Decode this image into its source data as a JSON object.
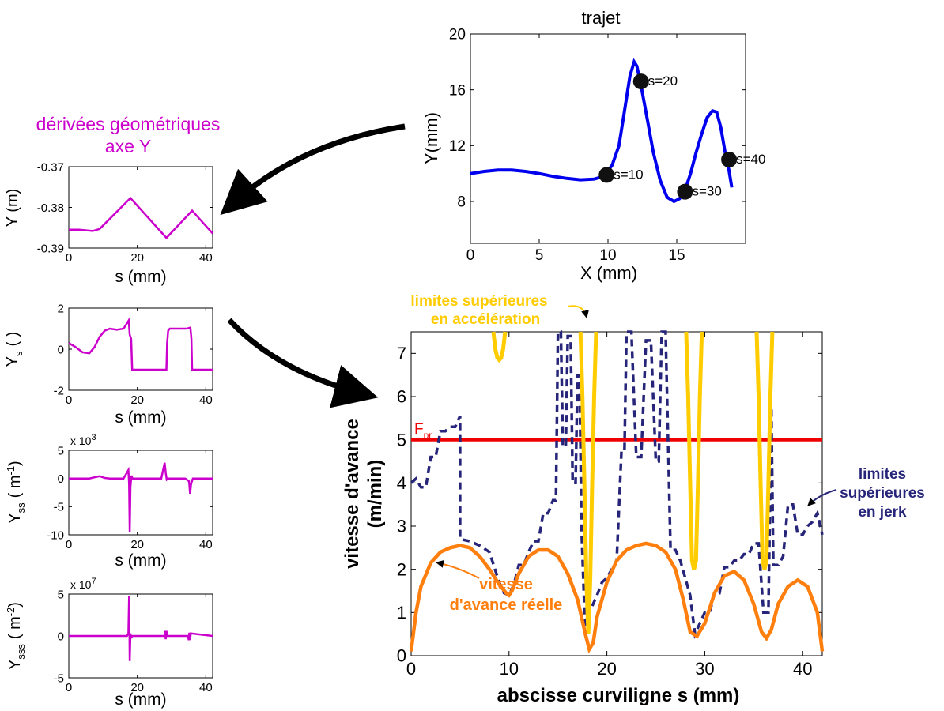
{
  "colors": {
    "path": "#0000ee",
    "derivative": "#cc00cc",
    "real_speed": "#ff7f0e",
    "jerk_limit": "#27257a",
    "accel_limit": "#ffcc00",
    "programmed": "#ee0000",
    "arrow": "#000000"
  },
  "labels": {
    "derivatives_title_1": "dérivées géométriques",
    "derivatives_title_2": "axe Y",
    "accel_annot_1": "limites supérieures",
    "accel_annot_2": "en accélération",
    "jerk_annot_1": "limites",
    "jerk_annot_2": "supérieures",
    "jerk_annot_3": "en jerk",
    "real_annot_1": "vitesse",
    "real_annot_2": "d'avance réelle",
    "fpr_main": "F",
    "fpr_sub": "pr",
    "exp_y_ss": "x 10",
    "exp_y_ss_pow": "3",
    "exp_y_sss": "x 10",
    "exp_y_sss_pow": "7"
  },
  "chart_data": [
    {
      "id": "trajet",
      "type": "line",
      "title": "trajet",
      "xlabel": "X (mm)",
      "ylabel": "Y(mm)",
      "xlim": [
        0,
        20
      ],
      "ylim": [
        5,
        20
      ],
      "xticks": [
        0,
        5,
        10,
        15
      ],
      "yticks": [
        8,
        12,
        16,
        20
      ],
      "series": [
        {
          "x": [
            0,
            1,
            2,
            3,
            4,
            5,
            6,
            7,
            8,
            9,
            9.7,
            10.3,
            10.8,
            11.2,
            11.6,
            11.9,
            12.1,
            12.4,
            12.8,
            13.3,
            13.8,
            14.3,
            14.8,
            15.2,
            15.6,
            16.0,
            16.4,
            16.8,
            17.2,
            17.6,
            17.9,
            18.2,
            18.5,
            18.8,
            19.0
          ],
          "y": [
            10.0,
            10.15,
            10.25,
            10.25,
            10.15,
            10.0,
            9.8,
            9.65,
            9.55,
            9.6,
            9.8,
            10.6,
            12.0,
            14.5,
            17.0,
            18.0,
            17.7,
            16.3,
            14.2,
            11.5,
            9.5,
            8.3,
            8.0,
            8.2,
            8.8,
            10.0,
            11.5,
            12.8,
            14.0,
            14.5,
            14.4,
            13.3,
            11.6,
            10.2,
            9.0
          ]
        }
      ],
      "markers": [
        {
          "label": "s=10",
          "x": 9.9,
          "y": 9.9
        },
        {
          "label": "s=20",
          "x": 12.4,
          "y": 16.6
        },
        {
          "label": "s=30",
          "x": 15.6,
          "y": 8.7
        },
        {
          "label": "s=40",
          "x": 18.8,
          "y": 11.0
        }
      ]
    },
    {
      "id": "y",
      "type": "line",
      "xlabel": "s (mm)",
      "ylabel": "Y (m)",
      "xlim": [
        0,
        42
      ],
      "ylim": [
        -0.39,
        -0.37
      ],
      "xticks": [
        0,
        20,
        40
      ],
      "yticks": [
        -0.39,
        -0.38,
        -0.37
      ],
      "ytick_labels": [
        "-0.39",
        "-0.38",
        "-0.37"
      ],
      "series": [
        {
          "x": [
            0,
            3,
            7,
            9,
            18,
            28.5,
            36,
            42
          ],
          "y": [
            -0.3855,
            -0.3855,
            -0.3858,
            -0.3853,
            -0.3777,
            -0.3875,
            -0.3808,
            -0.3864
          ]
        }
      ]
    },
    {
      "id": "ys",
      "type": "line",
      "xlabel": "s (mm)",
      "ylabel": "Y",
      "ylabel_sub": "s",
      "ylabel_unit": "( )",
      "xlim": [
        0,
        42
      ],
      "ylim": [
        -2,
        2
      ],
      "xticks": [
        0,
        20,
        40
      ],
      "yticks": [
        -2,
        0,
        2
      ],
      "series": [
        {
          "x": [
            0,
            2,
            4,
            6,
            7.5,
            9,
            10.5,
            12,
            14,
            16,
            17.5,
            17.8,
            18.2,
            18.5,
            19,
            28.5,
            28.7,
            29,
            29.5,
            34.5,
            35.5,
            35.8,
            36,
            36.5,
            42
          ],
          "y": [
            0.3,
            0.1,
            -0.15,
            -0.2,
            0.1,
            0.6,
            0.9,
            1.0,
            0.95,
            1.0,
            1.4,
            0.7,
            0.5,
            -1.0,
            -1.0,
            -1.0,
            0.3,
            0.9,
            1.0,
            1.0,
            1.05,
            0.5,
            -1.0,
            -1.0,
            -1.0
          ]
        }
      ]
    },
    {
      "id": "yss",
      "type": "line",
      "xlabel": "s (mm)",
      "ylabel": "Y",
      "ylabel_sub": "ss",
      "ylabel_unit": "( m",
      "ylabel_pow": "-1",
      "ylabel_close": ")",
      "exponent": 3,
      "xlim": [
        0,
        42
      ],
      "ylim": [
        -10,
        5
      ],
      "xticks": [
        0,
        20,
        40
      ],
      "yticks": [
        -10,
        -5,
        0,
        5
      ],
      "series": [
        {
          "x": [
            0,
            6,
            7.5,
            9,
            10.5,
            12,
            16,
            17.4,
            17.6,
            17.8,
            18.0,
            18.3,
            18.6,
            27,
            28.0,
            28.3,
            28.6,
            29,
            34,
            35.1,
            35.4,
            35.7,
            36.2,
            42
          ],
          "y": [
            0,
            0,
            0.2,
            0.4,
            0.1,
            0,
            0,
            1.5,
            -1.0,
            -9.5,
            -1.5,
            0.5,
            0,
            0,
            2.8,
            1.0,
            -0.2,
            0,
            0,
            -0.5,
            -2.7,
            -1.0,
            0,
            0
          ]
        }
      ]
    },
    {
      "id": "ysss",
      "type": "line",
      "xlabel": "s (mm)",
      "ylabel": "Y",
      "ylabel_sub": "sss",
      "ylabel_unit": "( m",
      "ylabel_pow": "-2",
      "ylabel_close": ")",
      "exponent": 7,
      "xlim": [
        0,
        42
      ],
      "ylim": [
        -5,
        5
      ],
      "xticks": [
        0,
        20,
        40
      ],
      "yticks": [
        -5,
        0,
        5
      ],
      "series": [
        {
          "x": [
            0,
            17,
            17.4,
            17.6,
            17.8,
            18.0,
            18.2,
            18.6,
            28,
            28.1,
            28.3,
            28.5,
            28.7,
            34.8,
            35.0,
            35.2,
            35.4,
            35.6,
            42
          ],
          "y": [
            0,
            0,
            0.3,
            4.8,
            -3.0,
            0.3,
            -0.2,
            0,
            0,
            0.6,
            -0.4,
            0.6,
            0,
            0,
            -0.5,
            0.4,
            -0.5,
            0.3,
            0
          ]
        }
      ]
    },
    {
      "id": "speed",
      "type": "line",
      "xlabel": "abscisse curviligne s (mm)",
      "ylabel_1": "vitesse d'avance",
      "ylabel_2": "(m/min)",
      "xlim": [
        0,
        42
      ],
      "ylim": [
        0,
        7.5
      ],
      "xticks": [
        0,
        10,
        20,
        30,
        40
      ],
      "yticks": [
        0,
        1,
        2,
        3,
        4,
        5,
        6,
        7
      ],
      "series": [
        {
          "name": "vitesse d'avance réelle",
          "key": "real",
          "x": [
            0,
            0.5,
            1,
            2,
            3,
            4,
            5,
            6,
            7,
            8,
            9,
            9.7,
            10,
            10.3,
            11,
            12,
            13,
            14,
            15,
            16,
            17,
            17.8,
            18.2,
            18.6,
            19,
            20,
            21,
            22,
            23,
            24,
            25,
            26,
            27,
            27.8,
            28.5,
            29.2,
            30,
            31,
            32,
            33,
            34,
            35,
            35.8,
            36.3,
            36.8,
            37.5,
            38.5,
            39.5,
            40.5,
            41.5,
            42
          ],
          "y": [
            0.1,
            1.0,
            1.6,
            2.15,
            2.4,
            2.5,
            2.55,
            2.5,
            2.3,
            2.0,
            1.65,
            1.45,
            1.4,
            1.5,
            1.9,
            2.3,
            2.45,
            2.45,
            2.3,
            1.9,
            1.3,
            0.5,
            0.15,
            0.3,
            0.9,
            1.7,
            2.2,
            2.45,
            2.55,
            2.6,
            2.55,
            2.4,
            2.0,
            1.3,
            0.55,
            0.45,
            0.75,
            1.45,
            1.85,
            1.95,
            1.75,
            1.2,
            0.55,
            0.4,
            0.6,
            1.2,
            1.6,
            1.75,
            1.6,
            1.0,
            0.1
          ]
        },
        {
          "name": "limites supérieures en jerk",
          "key": "jerk",
          "x": [
            0,
            0.5,
            1,
            1.5,
            2,
            2.5,
            3,
            3.5,
            4,
            4.5,
            5,
            5,
            6,
            7,
            8,
            9,
            9.5,
            10,
            10.5,
            11,
            11.5,
            12,
            12.5,
            13,
            13.5,
            14,
            14.5,
            14.8,
            15,
            15.3,
            15.5,
            15.8,
            16,
            16.3,
            16.5,
            16.8,
            17,
            17.2,
            17.4,
            17.6,
            17.8,
            18.0,
            18.4,
            19,
            19.5,
            20,
            20.5,
            21,
            21.5,
            21.8,
            22,
            22.5,
            23,
            23.5,
            24,
            24.5,
            25,
            25.3,
            25.6,
            26,
            26.5,
            27,
            27.5,
            28,
            28.5,
            29,
            30,
            30.5,
            31,
            31.5,
            32,
            32.5,
            33,
            33.5,
            34,
            34.5,
            35,
            35.5,
            36,
            36.5,
            36.8,
            37,
            37.5,
            38,
            38.5,
            39,
            39.5,
            40,
            40.5,
            41,
            41.5,
            42
          ],
          "y": [
            4.0,
            4.1,
            3.9,
            3.9,
            4.6,
            4.6,
            5.2,
            5.2,
            5.3,
            5.3,
            5.55,
            2.7,
            2.65,
            2.55,
            2.4,
            1.7,
            1.45,
            1.4,
            1.65,
            2.1,
            2.1,
            2.4,
            2.65,
            2.65,
            3.3,
            3.3,
            3.6,
            3.6,
            7.5,
            7.5,
            4.85,
            4.85,
            7.4,
            7.4,
            4.0,
            4.0,
            6.5,
            6.5,
            3.0,
            1.7,
            0.5,
            1.1,
            1.1,
            1.4,
            1.7,
            1.8,
            2.0,
            2.2,
            4.8,
            4.8,
            7.5,
            7.5,
            4.6,
            4.6,
            7.3,
            7.3,
            4.5,
            4.5,
            7.5,
            7.5,
            2.45,
            2.45,
            2.2,
            1.8,
            1.4,
            0.5,
            1.0,
            1.0,
            1.45,
            1.45,
            2.05,
            2.05,
            2.2,
            2.2,
            2.35,
            2.35,
            2.6,
            2.6,
            1.0,
            1.0,
            5.75,
            2.1,
            2.1,
            2.3,
            3.5,
            3.5,
            2.8,
            2.8,
            3.0,
            3.1,
            3.3,
            2.8
          ]
        },
        {
          "name": "limites supérieures en accélération",
          "key": "accel",
          "segments": [
            {
              "x": [
                8.4,
                8.6,
                8.8,
                9.0,
                9.2,
                9.4,
                9.6
              ],
              "y": [
                7.5,
                7.1,
                6.9,
                6.85,
                6.9,
                7.1,
                7.5
              ]
            },
            {
              "x": [
                17.3,
                17.5,
                17.7,
                17.9,
                18.1,
                18.3,
                18.5,
                18.7,
                18.9
              ],
              "y": [
                7.5,
                6.0,
                4.0,
                1.8,
                0.5,
                1.8,
                4.0,
                6.0,
                7.5
              ]
            },
            {
              "x": [
                28.1,
                28.3,
                28.5,
                28.7,
                28.9,
                29.1,
                29.3,
                29.5,
                29.7
              ],
              "y": [
                7.5,
                6.0,
                4.0,
                2.2,
                2.0,
                2.2,
                4.0,
                6.0,
                7.5
              ]
            },
            {
              "x": [
                35.3,
                35.5,
                35.7,
                35.9,
                36.1,
                36.3,
                36.5,
                36.7,
                36.9
              ],
              "y": [
                7.5,
                6.0,
                4.0,
                2.2,
                2.0,
                2.2,
                4.0,
                6.0,
                7.5
              ]
            }
          ]
        },
        {
          "name": "F pr",
          "key": "fpr",
          "x": [
            0,
            42
          ],
          "y": [
            5,
            5
          ]
        }
      ]
    }
  ]
}
